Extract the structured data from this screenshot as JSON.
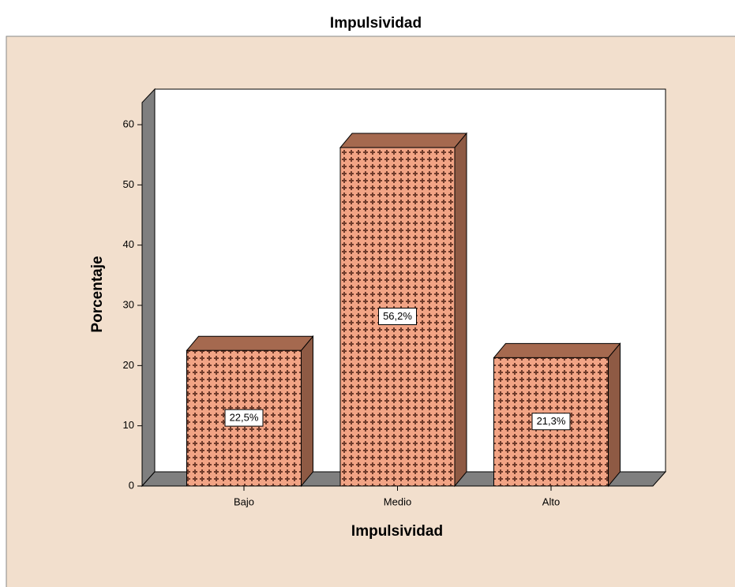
{
  "chart_data": {
    "type": "bar",
    "title": "Impulsividad",
    "x_label": "Impulsividad",
    "y_label": "Porcentaje",
    "categories": [
      "Bajo",
      "Medio",
      "Alto"
    ],
    "values": [
      22.5,
      56.2,
      21.3
    ],
    "value_labels": [
      "22,5%",
      "56,2%",
      "21,3%"
    ],
    "color": "#f2a485",
    "ylim": [
      0,
      64
    ],
    "yticks": [
      0,
      10,
      20,
      30,
      40,
      50,
      60
    ]
  }
}
